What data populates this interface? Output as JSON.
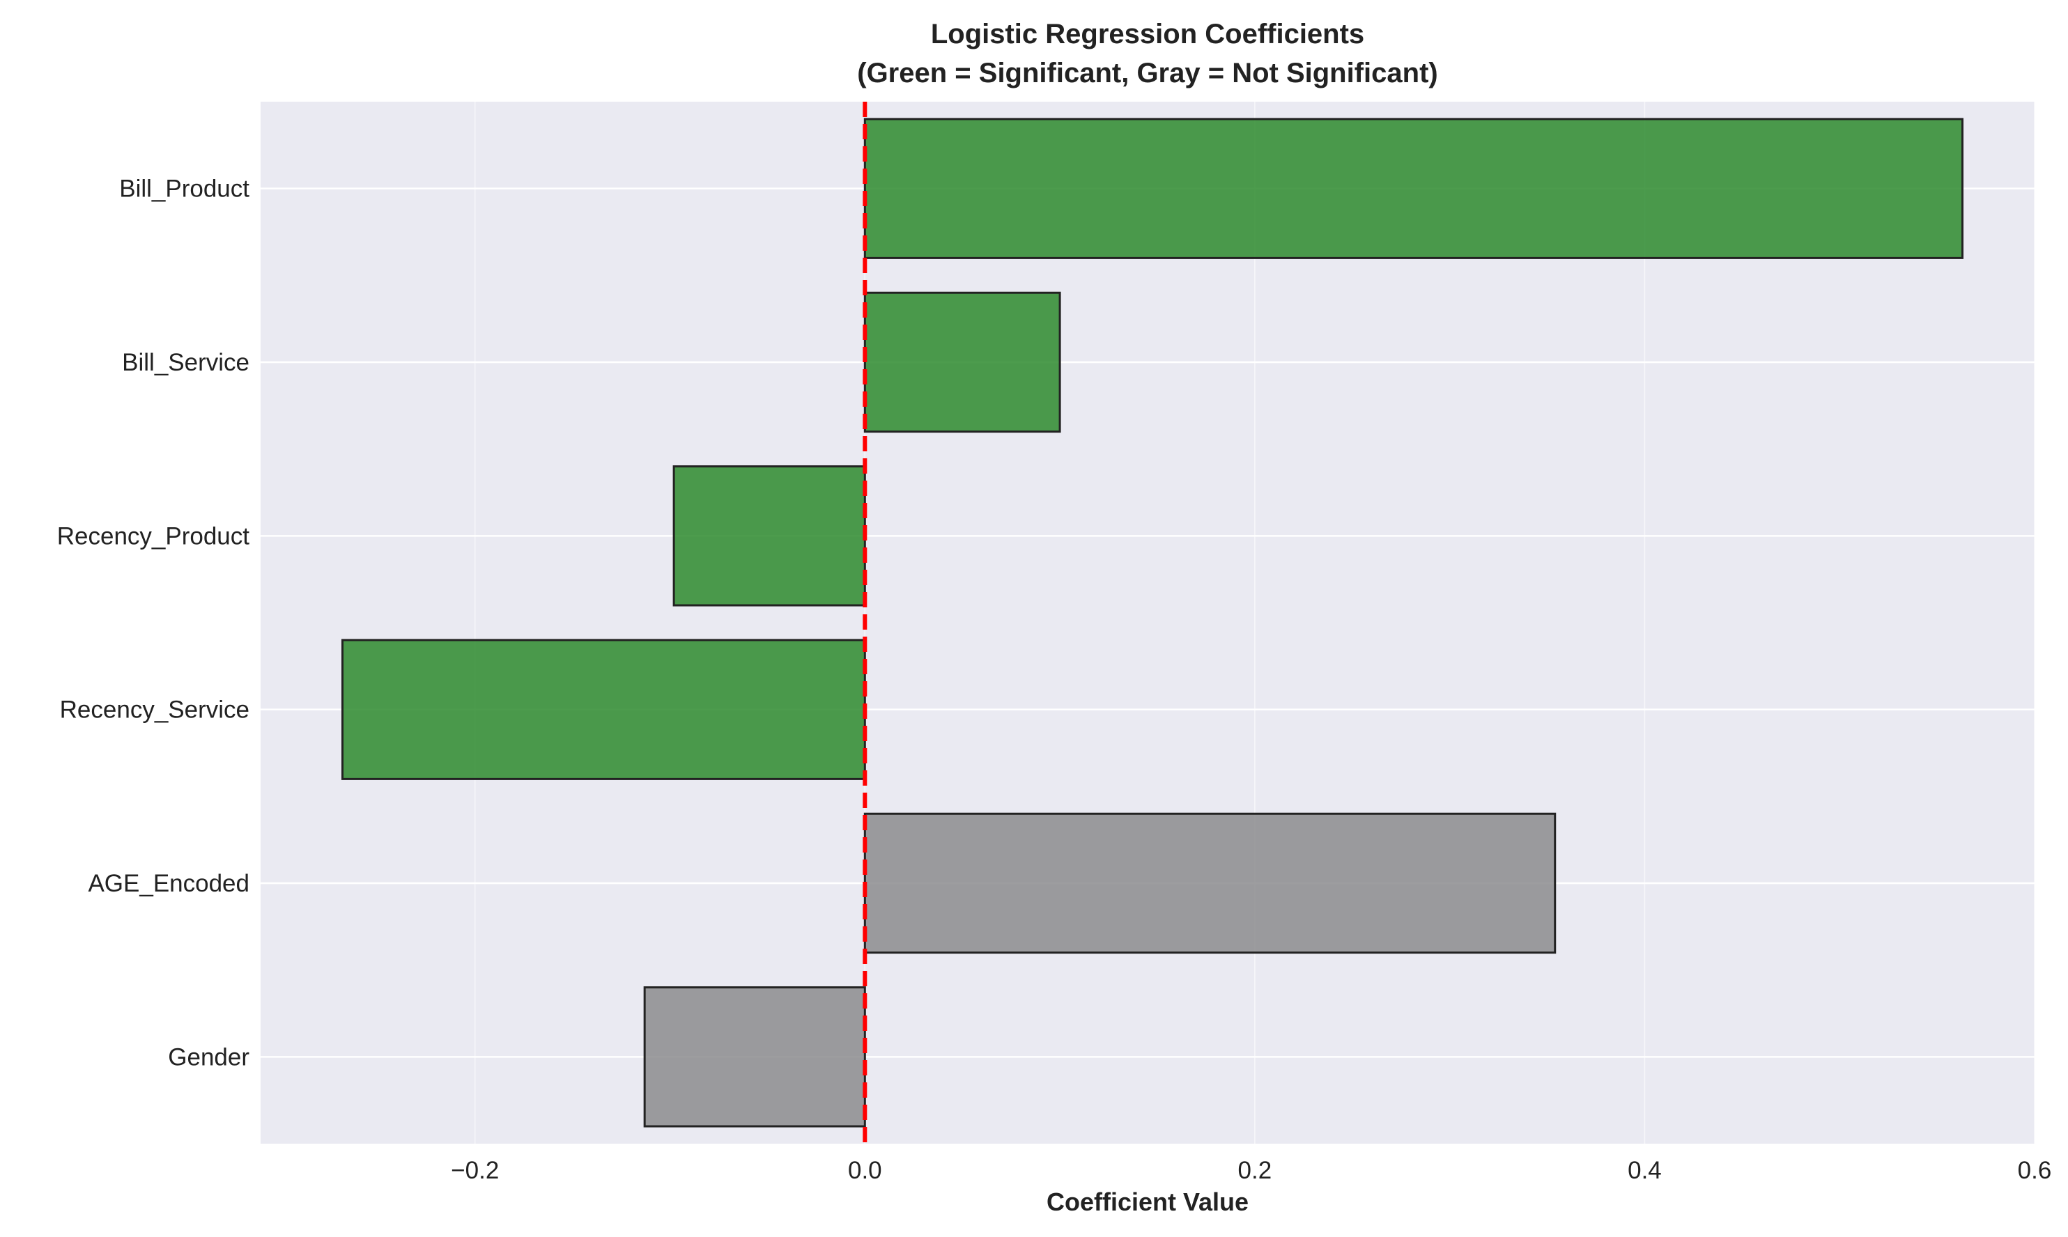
{
  "chart_data": {
    "type": "bar",
    "orientation": "horizontal",
    "title": "Logistic Regression Coefficients",
    "subtitle": "(Green = Significant, Gray = Not Significant)",
    "xlabel": "Coefficient Value",
    "ylabel": "",
    "categories": [
      "Bill_Product",
      "Bill_Service",
      "Recency_Product",
      "Recency_Service",
      "AGE_Encoded",
      "Gender"
    ],
    "values": [
      0.563,
      0.1,
      -0.098,
      -0.268,
      0.354,
      -0.113
    ],
    "significant": [
      true,
      true,
      true,
      true,
      false,
      false
    ],
    "xlim": [
      -0.31,
      0.6
    ],
    "xticks": [
      -0.2,
      0.0,
      0.2,
      0.4,
      0.6
    ],
    "xtick_labels": [
      "−0.2",
      "0.0",
      "0.2",
      "0.4",
      "0.6"
    ],
    "reference_line": {
      "x": 0.0,
      "style": "dashed",
      "color": "#ff0000"
    },
    "colors": {
      "significant": "#2e8b2e",
      "not_significant": "#8c8c8e",
      "bar_edge": "#222222",
      "plot_background": "#eaeaf2",
      "grid": "#ffffff"
    },
    "grid": true
  }
}
